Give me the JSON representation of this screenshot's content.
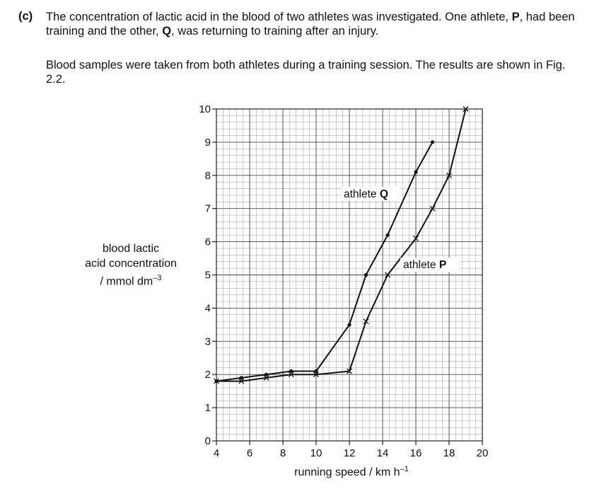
{
  "question": {
    "part_label": "(c)",
    "intro_1": "The concentration of lactic acid in the blood of two athletes was investigated. One athlete, ",
    "athlete_p": "P",
    "intro_2": ", had been training and the other, ",
    "athlete_q": "Q",
    "intro_3": ", was returning to training after an injury.",
    "paragraph": "Blood samples were taken from both athletes during a training session. The results are shown in Fig. 2.2."
  },
  "axis_labels": {
    "y_line1": "blood lactic",
    "y_line2": "acid concentration",
    "y_line3_main": "/ mmol dm",
    "y_line3_sup": "–3",
    "x_main": "running speed / km h",
    "x_sup": "–1"
  },
  "annotations": {
    "q_prefix": "athlete ",
    "q_bold": "Q",
    "p_prefix": "athlete ",
    "p_bold": "P"
  },
  "chart_data": {
    "type": "line",
    "xlabel": "running speed / km h–1",
    "ylabel": "blood lactic acid concentration / mmol dm–3",
    "xlim": [
      4,
      20
    ],
    "ylim": [
      0,
      10
    ],
    "x_ticks": [
      4,
      6,
      8,
      10,
      12,
      14,
      16,
      18,
      20
    ],
    "y_ticks": [
      0,
      1,
      2,
      3,
      4,
      5,
      6,
      7,
      8,
      9,
      10
    ],
    "grid": true,
    "series": [
      {
        "name": "athlete Q",
        "marker": "dot",
        "x": [
          4,
          5.5,
          7,
          8.5,
          10,
          12,
          13,
          14.3,
          16,
          17
        ],
        "y": [
          1.8,
          1.9,
          2.0,
          2.1,
          2.1,
          3.5,
          5.0,
          6.2,
          8.1,
          9.0
        ]
      },
      {
        "name": "athlete P",
        "marker": "cross",
        "x": [
          4,
          5.5,
          7,
          8.5,
          10,
          12,
          13,
          14.3,
          16,
          17,
          18,
          19
        ],
        "y": [
          1.8,
          1.8,
          1.9,
          2.0,
          2.0,
          2.1,
          3.6,
          5.0,
          6.1,
          7.0,
          8.0,
          10.0
        ]
      }
    ]
  }
}
